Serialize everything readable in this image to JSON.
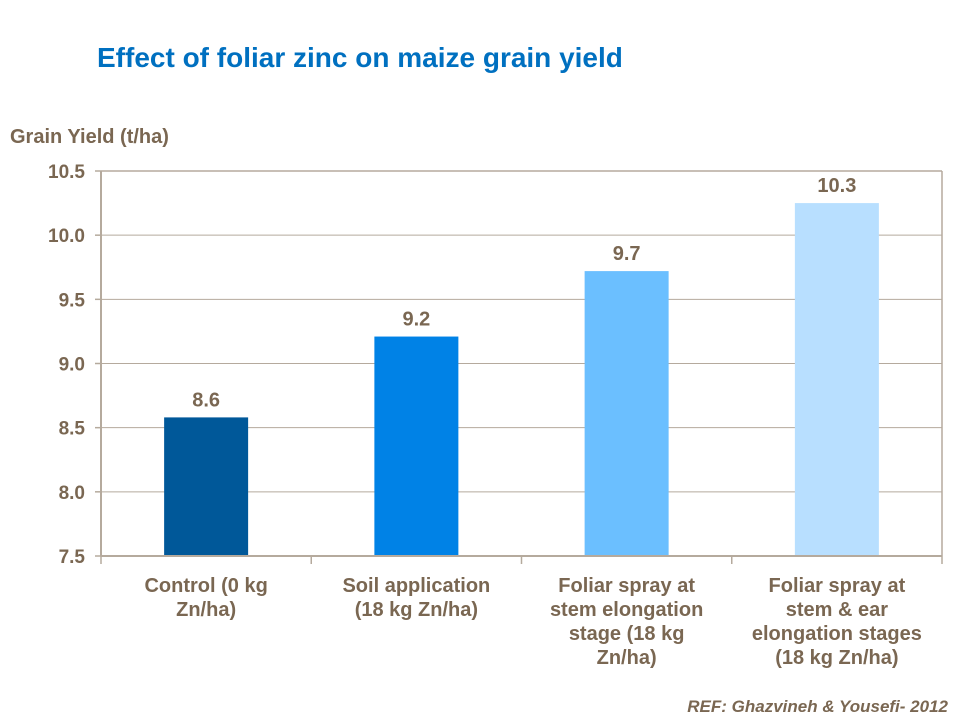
{
  "chart_data": {
    "type": "bar",
    "title": "Effect of foliar zinc on maize grain yield",
    "ylabel": "Grain Yield (t/ha)",
    "xlabel": "",
    "ylim": [
      7.5,
      10.5
    ],
    "yticks": [
      "7.5",
      "8.0",
      "8.5",
      "9.0",
      "9.5",
      "10.0",
      "10.5"
    ],
    "grid": true,
    "categories": [
      [
        "Control (0 kg",
        "Zn/ha)"
      ],
      [
        "Soil application",
        "(18 kg Zn/ha)"
      ],
      [
        "Foliar spray at",
        "stem elongation",
        "stage (18 kg",
        "Zn/ha)"
      ],
      [
        "Foliar spray at",
        "stem & ear",
        "elongation stages",
        "(18 kg Zn/ha)"
      ]
    ],
    "values": [
      8.58,
      9.21,
      9.72,
      10.25
    ],
    "data_labels": [
      "8.6",
      "9.2",
      "9.7",
      "10.3"
    ],
    "colors": [
      "#005899",
      "#0082e6",
      "#6bbfff",
      "#b8dfff"
    ],
    "text_color": "#7a6752",
    "title_color": "#0070c0",
    "source": "REF: Ghazvineh & Yousefi- 2012"
  }
}
